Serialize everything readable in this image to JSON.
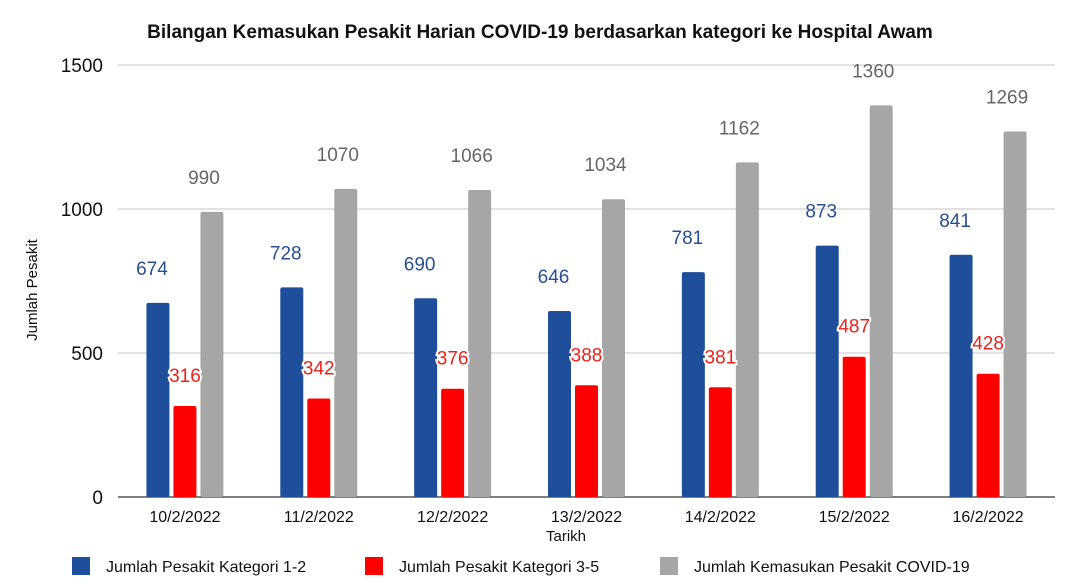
{
  "chart_data": {
    "type": "bar",
    "title": "Bilangan Kemasukan Pesakit Harian COVID-19 berdasarkan kategori  ke Hospital Awam",
    "xlabel": "Tarikh",
    "ylabel": "Jumlah Pesakit",
    "ylim": [
      0,
      1500
    ],
    "yticks": [
      0,
      500,
      1000,
      1500
    ],
    "grid": true,
    "legend_position": "bottom",
    "categories": [
      "10/2/2022",
      "11/2/2022",
      "12/2/2022",
      "13/2/2022",
      "14/2/2022",
      "15/2/2022",
      "16/2/2022"
    ],
    "series": [
      {
        "name": "Jumlah Pesakit Kategori 1-2",
        "color": "#1f4e9a",
        "label_color": "#2a4f8f",
        "values": [
          674,
          728,
          690,
          646,
          781,
          873,
          841
        ]
      },
      {
        "name": "Jumlah Pesakit Kategori 3-5",
        "color": "#ff0000",
        "label_color": "#e8231c",
        "values": [
          316,
          342,
          376,
          388,
          381,
          487,
          428
        ]
      },
      {
        "name": "Jumlah Kemasukan Pesakit COVID-19",
        "color": "#a6a6a6",
        "label_color": "#666666",
        "values": [
          990,
          1070,
          1066,
          1034,
          1162,
          1360,
          1269
        ]
      }
    ]
  }
}
